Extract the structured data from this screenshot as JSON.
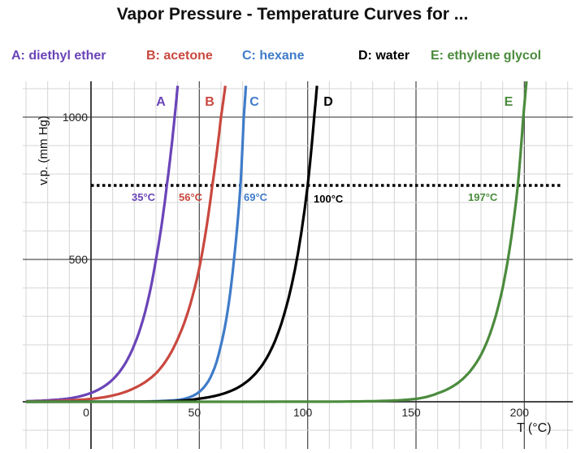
{
  "chart_data": {
    "type": "line",
    "title": "Vapor Pressure - Temperature Curves for ...",
    "xlabel": "T (°C)",
    "ylabel": "v.p. (mm Hg)",
    "xlim": [
      -30,
      225
    ],
    "ylim": [
      -150,
      1110
    ],
    "x_ticks": [
      "0",
      "50",
      "100",
      "150",
      "200"
    ],
    "y_ticks": [
      "500",
      "1000"
    ],
    "grid": true,
    "legend_placement": "top",
    "series": [
      {
        "name": "A: diethyl ether",
        "label": "A",
        "bp_label": "35°C",
        "color": "#6a44b8",
        "x": [
          -30,
          -20,
          -10,
          0,
          10,
          20,
          30,
          35,
          38.6,
          40
        ],
        "y": [
          2,
          5,
          12,
          31,
          78,
          200,
          500,
          760,
          1000,
          1110
        ]
      },
      {
        "name": "B: acetone",
        "label": "B",
        "bp_label": "56°C",
        "color": "#c9483f",
        "x": [
          -30,
          -20,
          -10,
          0,
          10,
          20,
          30,
          40,
          50,
          56,
          60,
          62
        ],
        "y": [
          1,
          2,
          5,
          10,
          22,
          48,
          100,
          220,
          470,
          760,
          1000,
          1110
        ]
      },
      {
        "name": "C: hexane",
        "label": "C",
        "bp_label": "69°C",
        "color": "#3f7cc9",
        "x": [
          20,
          30,
          40,
          50,
          60,
          66,
          69,
          70.5,
          71.5
        ],
        "y": [
          0.5,
          2,
          6,
          35,
          200,
          500,
          760,
          1000,
          1110
        ]
      },
      {
        "name": "D: water",
        "label": "D",
        "bp_label": "100°C",
        "color": "#000000",
        "x": [
          20,
          30,
          40,
          50,
          60,
          70,
          80,
          90,
          95,
          100,
          103,
          104.3
        ],
        "y": [
          0.3,
          1,
          3,
          11,
          26,
          60,
          140,
          330,
          500,
          760,
          1000,
          1110
        ]
      },
      {
        "name": "E: ethylene glycol",
        "label": "E",
        "bp_label": "197°C",
        "color": "#4b8b3d",
        "x": [
          -30,
          100,
          130,
          150,
          160,
          170,
          180,
          190,
          197,
          199.5,
          200.8
        ],
        "y": [
          0.01,
          0.2,
          2,
          10,
          30,
          70,
          165,
          400,
          760,
          1000,
          1110
        ]
      }
    ],
    "reference_line": {
      "y": 760,
      "style": "dotted",
      "color": "#000000"
    }
  }
}
